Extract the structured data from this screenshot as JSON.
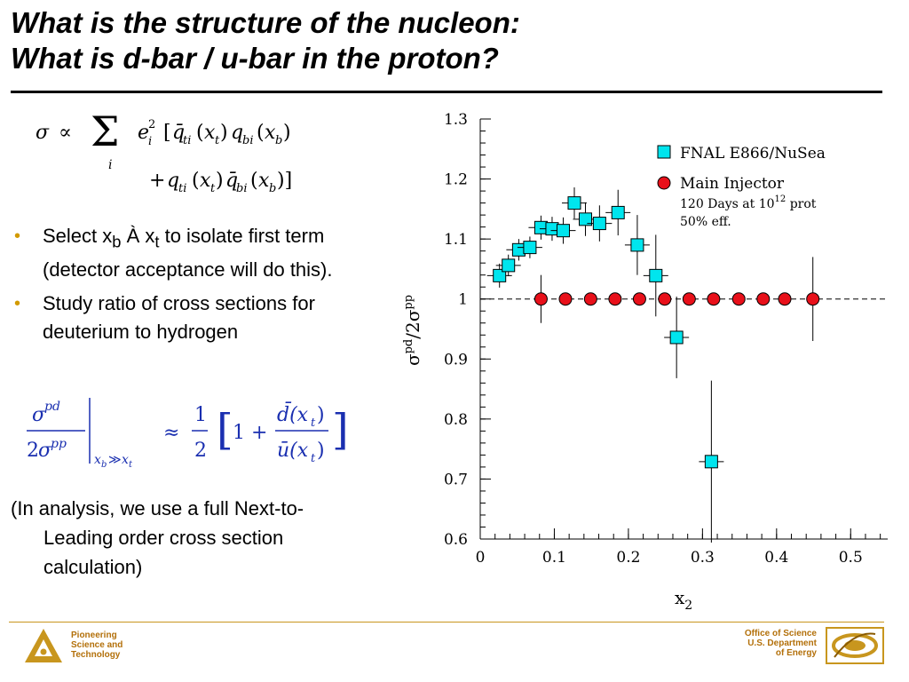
{
  "title": {
    "line1": "What is the structure of the nucleon:",
    "line2": "What is d-bar / u-bar in the proton?"
  },
  "bullets": [
    {
      "pre": "Select x",
      "sub1": "b",
      "mid": " À x",
      "sub2": "t",
      "post": " to isolate first term (detector acceptance will do this)."
    },
    {
      "text": "Study ratio of cross sections for deuterium to hydrogen"
    }
  ],
  "note": {
    "line1": "(In analysis, we use a full Next-to-",
    "line2": "Leading order cross section",
    "line3": "calculation)"
  },
  "footer": {
    "lab_lines": [
      "Pioneering",
      "Science and",
      "Technology"
    ],
    "doe_lines": [
      "Office of Science",
      "U.S. Department",
      "of Energy"
    ]
  },
  "colors": {
    "accent": "#c8961e",
    "fnal": "#00e5ee",
    "injector": "#e8101a"
  },
  "chart_data": {
    "type": "scatter",
    "xlabel": "x",
    "xlabel_sub": "2",
    "ylabel_parts": {
      "sigma": "σ",
      "sup1": "pd",
      "slash": "/2σ",
      "sup2": "pp"
    },
    "xlim": [
      0,
      0.55
    ],
    "ylim": [
      0.6,
      1.3
    ],
    "x_ticks": [
      "0",
      "0.1",
      "0.2",
      "0.3",
      "0.4",
      "0.5"
    ],
    "y_ticks": [
      "0.6",
      "0.7",
      "0.8",
      "0.9",
      "1",
      "1.1",
      "1.2",
      "1.3"
    ],
    "reference_line": 1.0,
    "legend": {
      "fnal": "FNAL E866/NuSea",
      "injector": "Main Injector",
      "note1_pre": "120 Days at 10",
      "note1_sup": "12",
      "note1_post": " prot",
      "note2": "50% eff."
    },
    "series": [
      {
        "name": "FNAL E866/NuSea",
        "marker": "square",
        "points": [
          {
            "x": 0.026,
            "y": 1.039,
            "ey": 0.02
          },
          {
            "x": 0.038,
            "y": 1.056,
            "ey": 0.018
          },
          {
            "x": 0.052,
            "y": 1.082,
            "ey": 0.018
          },
          {
            "x": 0.067,
            "y": 1.086,
            "ey": 0.018
          },
          {
            "x": 0.082,
            "y": 1.119,
            "ey": 0.02
          },
          {
            "x": 0.097,
            "y": 1.117,
            "ey": 0.02
          },
          {
            "x": 0.112,
            "y": 1.114,
            "ey": 0.022
          },
          {
            "x": 0.127,
            "y": 1.16,
            "ey": 0.026
          },
          {
            "x": 0.142,
            "y": 1.133,
            "ey": 0.028
          },
          {
            "x": 0.161,
            "y": 1.126,
            "ey": 0.03
          },
          {
            "x": 0.186,
            "y": 1.144,
            "ey": 0.038
          },
          {
            "x": 0.212,
            "y": 1.09,
            "ey": 0.05
          },
          {
            "x": 0.237,
            "y": 1.039,
            "ey": 0.068
          },
          {
            "x": 0.265,
            "y": 0.936,
            "ey": 0.068
          },
          {
            "x": 0.312,
            "y": 0.729,
            "ey": 0.135
          }
        ]
      },
      {
        "name": "Main Injector",
        "marker": "circle",
        "points": [
          {
            "x": 0.082,
            "y": 1.0,
            "ey": 0.04
          },
          {
            "x": 0.115,
            "y": 1.0,
            "ey": 0.0
          },
          {
            "x": 0.149,
            "y": 1.0,
            "ey": 0.0
          },
          {
            "x": 0.182,
            "y": 1.0,
            "ey": 0.0
          },
          {
            "x": 0.215,
            "y": 1.0,
            "ey": 0.0
          },
          {
            "x": 0.249,
            "y": 1.0,
            "ey": 0.0
          },
          {
            "x": 0.282,
            "y": 1.0,
            "ey": 0.0
          },
          {
            "x": 0.315,
            "y": 1.0,
            "ey": 0.0
          },
          {
            "x": 0.349,
            "y": 1.0,
            "ey": 0.0
          },
          {
            "x": 0.382,
            "y": 1.0,
            "ey": 0.0
          },
          {
            "x": 0.411,
            "y": 1.0,
            "ey": 0.0
          },
          {
            "x": 0.449,
            "y": 1.0,
            "ey": 0.07
          }
        ]
      }
    ]
  }
}
